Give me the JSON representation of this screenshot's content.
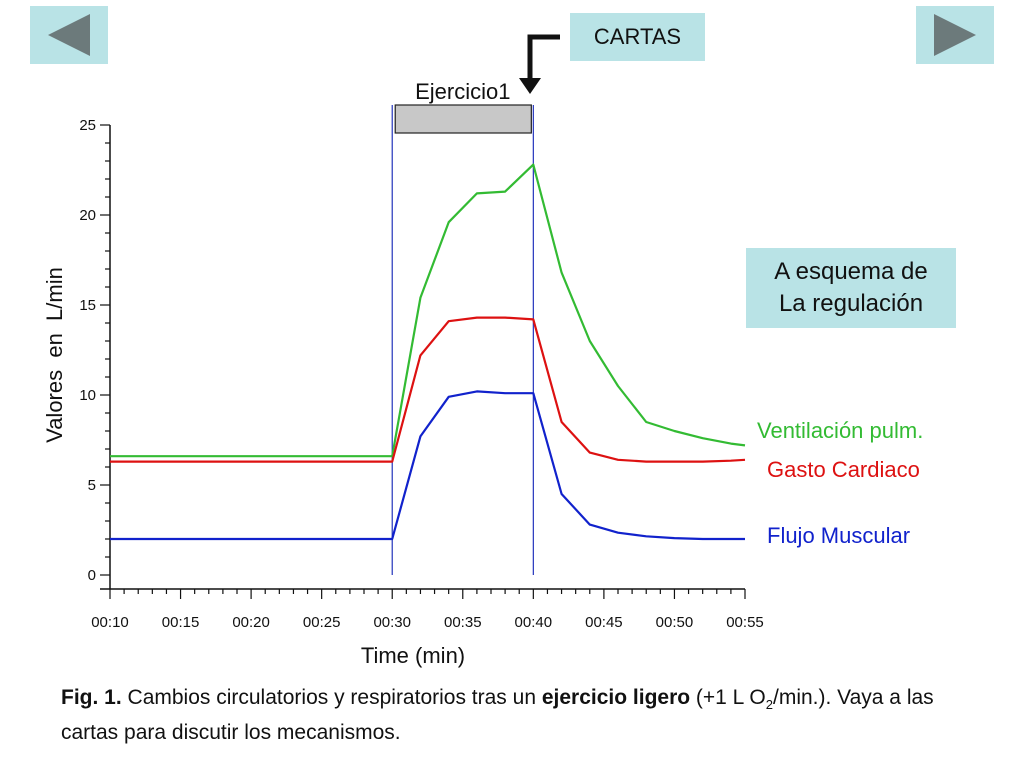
{
  "nav": {
    "prev_icon": "triangle-left-icon",
    "next_icon": "triangle-right-icon"
  },
  "links": {
    "cartas": "CARTAS",
    "esquema_line1": "A esquema de",
    "esquema_line2": "La regulación"
  },
  "colors": {
    "button_bg": "#b9e3e6",
    "green": "#33bb33",
    "red": "#dd1111",
    "blue": "#1122cc",
    "marker_line": "#2233bb",
    "bar_fill": "#c8c8c8"
  },
  "chart_data": {
    "type": "line",
    "xlabel": "Time (min)",
    "ylabel": "Valores  en  L/min",
    "ylim": [
      0,
      25
    ],
    "yticks": [
      0,
      5,
      10,
      15,
      20,
      25
    ],
    "xlim": [
      10,
      55
    ],
    "xticks": [
      "00:10",
      "00:15",
      "00:20",
      "00:25",
      "00:30",
      "00:35",
      "00:40",
      "00:45",
      "00:50",
      "00:55"
    ],
    "xtick_values": [
      10,
      15,
      20,
      25,
      30,
      35,
      40,
      45,
      50,
      55
    ],
    "exercise": {
      "label": "Ejercicio1",
      "start": 30,
      "end": 40
    },
    "series": [
      {
        "name": "Ventilación pulm.",
        "color": "#33bb33",
        "x": [
          10,
          30,
          32,
          34,
          36,
          38,
          40,
          42,
          44,
          46,
          48,
          50,
          52,
          54,
          55
        ],
        "values": [
          6.6,
          6.6,
          15.4,
          19.6,
          21.2,
          21.3,
          22.8,
          16.8,
          13.0,
          10.5,
          8.5,
          8.0,
          7.6,
          7.3,
          7.2
        ]
      },
      {
        "name": "Gasto Cardiaco",
        "color": "#dd1111",
        "x": [
          10,
          30,
          32,
          34,
          36,
          38,
          40,
          42,
          44,
          46,
          48,
          50,
          52,
          54,
          55
        ],
        "values": [
          6.3,
          6.3,
          12.2,
          14.1,
          14.3,
          14.3,
          14.2,
          8.5,
          6.8,
          6.4,
          6.3,
          6.3,
          6.3,
          6.35,
          6.4
        ]
      },
      {
        "name": "Flujo Muscular",
        "color": "#1122cc",
        "x": [
          10,
          30,
          32,
          34,
          36,
          38,
          40,
          42,
          44,
          46,
          48,
          50,
          52,
          54,
          55
        ],
        "values": [
          2.0,
          2.0,
          7.7,
          9.9,
          10.2,
          10.1,
          10.1,
          4.5,
          2.8,
          2.35,
          2.15,
          2.05,
          2.0,
          2.0,
          2.0
        ]
      }
    ]
  },
  "caption": {
    "fig_label": "Fig. 1.",
    "text1": " Cambios circulatorios y respiratorios tras un ",
    "bold": "ejercicio ligero",
    "text2": " (+1 L O",
    "sub": "2",
    "text3": "/min.). Vaya a las cartas para discutir los mecanismos."
  }
}
